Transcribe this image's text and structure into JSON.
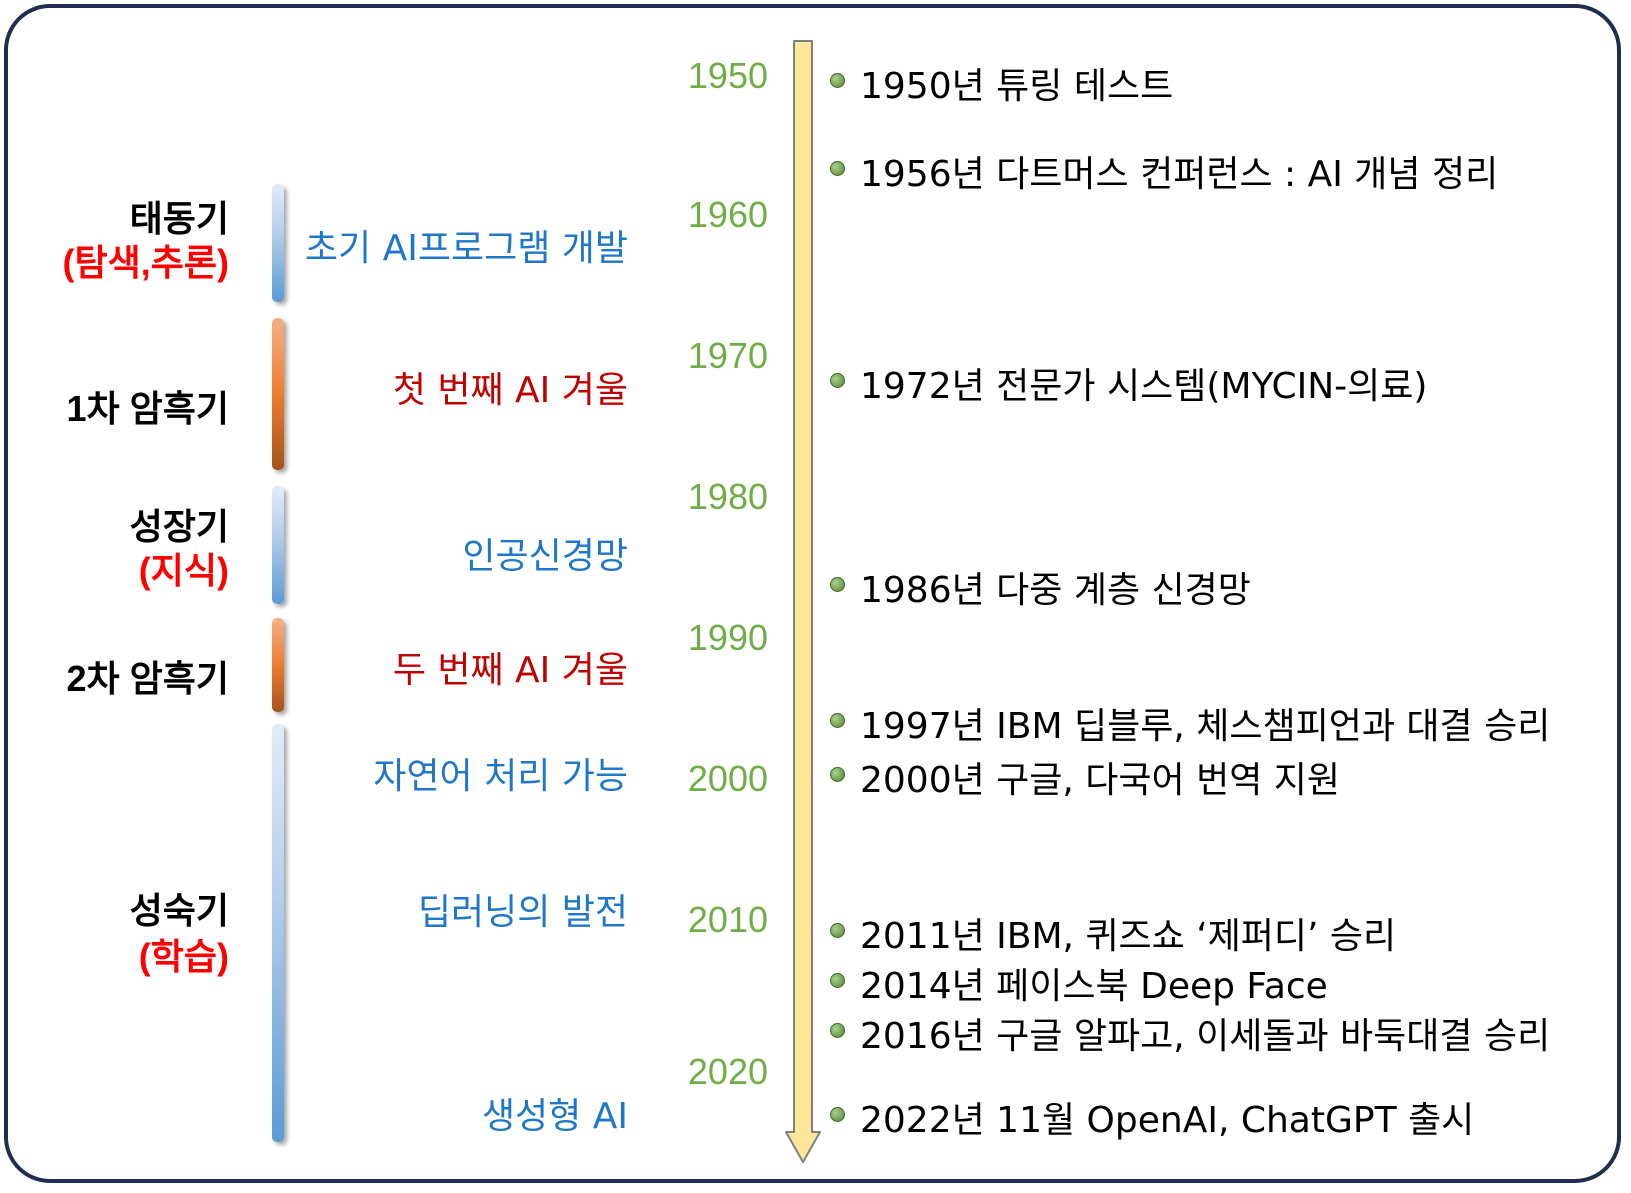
{
  "eras": [
    {
      "title": "태동기",
      "subtitle": "(탐색,추론)",
      "bar_color": "blue"
    },
    {
      "title": "1차 암흑기",
      "subtitle": "",
      "bar_color": "orange"
    },
    {
      "title": "성장기",
      "subtitle": "(지식)",
      "bar_color": "blue"
    },
    {
      "title": "2차 암흑기",
      "subtitle": "",
      "bar_color": "orange"
    },
    {
      "title": "성숙기",
      "subtitle": "(학습)",
      "bar_color": "blue"
    }
  ],
  "developments": [
    {
      "text": "초기 AI프로그램 개발",
      "color": "#1f77c9"
    },
    {
      "text": "첫 번째 AI 겨울",
      "color": "#c00000"
    },
    {
      "text": "인공신경망",
      "color": "#1f77c9"
    },
    {
      "text": "두 번째 AI 겨울",
      "color": "#c00000"
    },
    {
      "text": "자연어 처리 가능",
      "color": "#1f77c9"
    },
    {
      "text": "딥러닝의 발전",
      "color": "#1f77c9"
    },
    {
      "text": "생성형 AI",
      "color": "#1f77c9"
    }
  ],
  "decades": [
    "1950",
    "1960",
    "1970",
    "1980",
    "1990",
    "2000",
    "2010",
    "2020"
  ],
  "events": [
    "1950년 튜링 테스트",
    "1956년 다트머스 컨퍼런스 : AI 개념 정리",
    "1972년 전문가 시스템(MYCIN-의료)",
    "1986년 다중 계층 신경망",
    "1997년 IBM 딥블루, 체스챔피언과 대결 승리",
    "2000년 구글, 다국어 번역 지원",
    "2011년 IBM, 퀴즈쇼 ‘제퍼디’ 승리",
    "2014년 페이스북 Deep Face",
    "2016년 구글 알파고, 이세돌과 바둑대결 승리",
    "2022년 11월 OpenAI, ChatGPT 출시"
  ],
  "colors": {
    "frame_border": "#1f2d4e",
    "year_label": "#70ad47",
    "axis_fill": "#ffe699",
    "era_subtitle": "#ff0000",
    "event_dot": "#70ad47"
  }
}
